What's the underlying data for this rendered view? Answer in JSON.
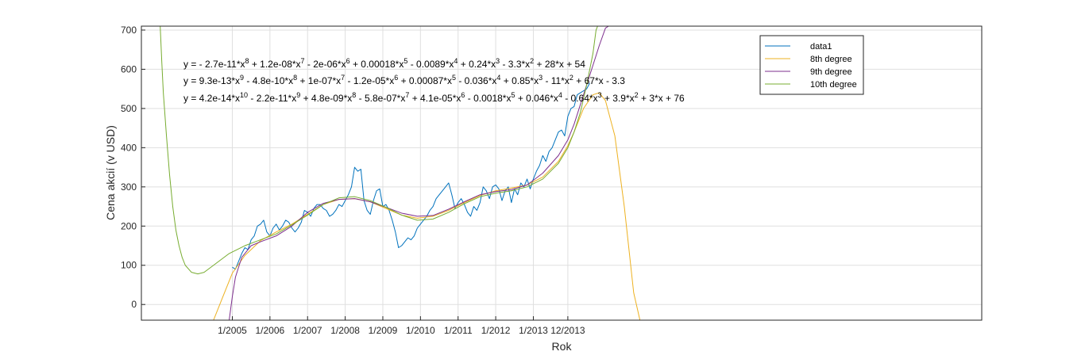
{
  "chart_data": {
    "type": "line",
    "xlabel": "Rok",
    "ylabel": "Cena akcií (v USD)",
    "xlim": [
      -28,
      240
    ],
    "ylim": [
      -40,
      710
    ],
    "ytick_values": [
      0,
      100,
      200,
      300,
      400,
      500,
      600,
      700
    ],
    "ytick_labels": [
      "0",
      "100",
      "200",
      "300",
      "400",
      "500",
      "600",
      "700"
    ],
    "xtick_values": [
      1,
      13,
      25,
      37,
      49,
      61,
      73,
      85,
      97,
      108
    ],
    "xtick_labels": [
      "1/2005",
      "1/2006",
      "1/2007",
      "1/2008",
      "1/2009",
      "1/2010",
      "1/2011",
      "1/2012",
      "1/2013",
      "12/2013"
    ],
    "grid": true,
    "legend": {
      "location": "top-right",
      "entries": [
        {
          "label": "data1",
          "color": "#0072BD"
        },
        {
          "label": "8th degree",
          "color": "#EDB120"
        },
        {
          "label": "9th degree",
          "color": "#7E2F8E"
        },
        {
          "label": "10th degree",
          "color": "#77AC30"
        }
      ]
    },
    "annotations": [
      {
        "label": "y = - 2.7e-11*x^8 + 1.2e-08*x^7 - 2e-06*x^6 + 0.00018*x^5 - 0.0089*x^4 + 0.24*x^3 - 3.3*x^2 + 28*x + 54"
      },
      {
        "label": "y = 9.3e-13*x^9 - 4.8e-10*x^8 + 1e-07*x^7 - 1.2e-05*x^6 + 0.00087*x^5 - 0.036*x^4 + 0.85*x^3 - 11*x^2 + 67*x - 3.3"
      },
      {
        "label": "y = 4.2e-14*x^10 - 2.2e-11*x^9 + 4.8e-09*x^8 - 5.8e-07*x^7 + 4.1e-05*x^6 - 0.0018*x^5 + 0.046*x^4 - 0.64*x^3 + 3.9*x^2 + 3*x + 76"
      }
    ],
    "series": [
      {
        "name": "data1",
        "color": "#0072BD",
        "points": [
          [
            1,
            95
          ],
          [
            2,
            90
          ],
          [
            3,
            110
          ],
          [
            4,
            130
          ],
          [
            5,
            145
          ],
          [
            6,
            140
          ],
          [
            7,
            165
          ],
          [
            8,
            175
          ],
          [
            9,
            200
          ],
          [
            10,
            205
          ],
          [
            11,
            215
          ],
          [
            12,
            185
          ],
          [
            13,
            175
          ],
          [
            14,
            195
          ],
          [
            15,
            205
          ],
          [
            16,
            190
          ],
          [
            17,
            200
          ],
          [
            18,
            215
          ],
          [
            19,
            210
          ],
          [
            20,
            195
          ],
          [
            21,
            185
          ],
          [
            22,
            195
          ],
          [
            23,
            210
          ],
          [
            24,
            240
          ],
          [
            25,
            235
          ],
          [
            26,
            225
          ],
          [
            27,
            245
          ],
          [
            28,
            255
          ],
          [
            29,
            255
          ],
          [
            30,
            245
          ],
          [
            31,
            240
          ],
          [
            32,
            225
          ],
          [
            33,
            230
          ],
          [
            34,
            240
          ],
          [
            35,
            255
          ],
          [
            36,
            250
          ],
          [
            37,
            265
          ],
          [
            38,
            280
          ],
          [
            39,
            300
          ],
          [
            40,
            350
          ],
          [
            41,
            340
          ],
          [
            42,
            345
          ],
          [
            43,
            265
          ],
          [
            44,
            240
          ],
          [
            45,
            230
          ],
          [
            46,
            265
          ],
          [
            47,
            290
          ],
          [
            48,
            295
          ],
          [
            49,
            250
          ],
          [
            50,
            255
          ],
          [
            51,
            240
          ],
          [
            52,
            215
          ],
          [
            53,
            185
          ],
          [
            54,
            145
          ],
          [
            55,
            150
          ],
          [
            56,
            160
          ],
          [
            57,
            170
          ],
          [
            58,
            165
          ],
          [
            59,
            175
          ],
          [
            60,
            195
          ],
          [
            61,
            205
          ],
          [
            62,
            215
          ],
          [
            63,
            225
          ],
          [
            64,
            240
          ],
          [
            65,
            250
          ],
          [
            66,
            270
          ],
          [
            67,
            280
          ],
          [
            68,
            290
          ],
          [
            69,
            300
          ],
          [
            70,
            310
          ],
          [
            71,
            280
          ],
          [
            72,
            245
          ],
          [
            73,
            260
          ],
          [
            74,
            270
          ],
          [
            75,
            255
          ],
          [
            76,
            235
          ],
          [
            77,
            225
          ],
          [
            78,
            250
          ],
          [
            79,
            240
          ],
          [
            80,
            260
          ],
          [
            81,
            300
          ],
          [
            82,
            290
          ],
          [
            83,
            270
          ],
          [
            84,
            300
          ],
          [
            85,
            305
          ],
          [
            86,
            295
          ],
          [
            87,
            265
          ],
          [
            88,
            290
          ],
          [
            89,
            300
          ],
          [
            90,
            260
          ],
          [
            91,
            295
          ],
          [
            92,
            280
          ],
          [
            93,
            310
          ],
          [
            94,
            300
          ],
          [
            95,
            320
          ],
          [
            96,
            295
          ],
          [
            97,
            320
          ],
          [
            98,
            340
          ],
          [
            99,
            355
          ],
          [
            100,
            380
          ],
          [
            101,
            365
          ],
          [
            102,
            390
          ],
          [
            103,
            400
          ],
          [
            104,
            420
          ],
          [
            105,
            440
          ],
          [
            106,
            445
          ],
          [
            107,
            430
          ],
          [
            108,
            480
          ],
          [
            109,
            500
          ],
          [
            110,
            505
          ],
          [
            111,
            535
          ],
          [
            112,
            540
          ],
          [
            113,
            545
          ],
          [
            114,
            550
          ],
          [
            115,
            565
          ]
        ]
      },
      {
        "name": "8th degree",
        "color": "#EDB120",
        "points": [
          [
            -5,
            -40
          ],
          [
            -2,
            20
          ],
          [
            1,
            80
          ],
          [
            5,
            125
          ],
          [
            10,
            163
          ],
          [
            15,
            185
          ],
          [
            20,
            205
          ],
          [
            25,
            230
          ],
          [
            30,
            255
          ],
          [
            35,
            268
          ],
          [
            40,
            270
          ],
          [
            45,
            262
          ],
          [
            50,
            245
          ],
          [
            55,
            228
          ],
          [
            60,
            220
          ],
          [
            65,
            225
          ],
          [
            70,
            240
          ],
          [
            75,
            260
          ],
          [
            80,
            278
          ],
          [
            85,
            290
          ],
          [
            90,
            297
          ],
          [
            95,
            305
          ],
          [
            100,
            325
          ],
          [
            105,
            365
          ],
          [
            108,
            405
          ],
          [
            110,
            440
          ],
          [
            113,
            500
          ],
          [
            116,
            535
          ],
          [
            118,
            540
          ],
          [
            120,
            520
          ],
          [
            123,
            430
          ],
          [
            126,
            250
          ],
          [
            129,
            30
          ],
          [
            131,
            -40
          ]
        ]
      },
      {
        "name": "9th degree",
        "color": "#7E2F8E",
        "points": [
          [
            0,
            -40
          ],
          [
            1,
            20
          ],
          [
            2,
            70
          ],
          [
            4,
            120
          ],
          [
            7,
            150
          ],
          [
            10,
            160
          ],
          [
            15,
            175
          ],
          [
            20,
            200
          ],
          [
            25,
            235
          ],
          [
            30,
            258
          ],
          [
            35,
            268
          ],
          [
            40,
            270
          ],
          [
            45,
            262
          ],
          [
            50,
            248
          ],
          [
            55,
            233
          ],
          [
            60,
            225
          ],
          [
            65,
            227
          ],
          [
            70,
            243
          ],
          [
            75,
            262
          ],
          [
            80,
            280
          ],
          [
            85,
            288
          ],
          [
            90,
            293
          ],
          [
            95,
            305
          ],
          [
            100,
            335
          ],
          [
            105,
            380
          ],
          [
            108,
            420
          ],
          [
            110,
            460
          ],
          [
            112,
            510
          ],
          [
            114,
            560
          ],
          [
            116,
            610
          ],
          [
            118,
            660
          ],
          [
            120,
            705
          ],
          [
            121,
            710
          ]
        ]
      },
      {
        "name": "10th degree",
        "color": "#77AC30",
        "points": [
          [
            -22,
            710
          ],
          [
            -21.5,
            620
          ],
          [
            -21,
            540
          ],
          [
            -20,
            430
          ],
          [
            -19,
            330
          ],
          [
            -18,
            250
          ],
          [
            -17,
            190
          ],
          [
            -16,
            150
          ],
          [
            -15,
            120
          ],
          [
            -14,
            100
          ],
          [
            -12,
            82
          ],
          [
            -10,
            78
          ],
          [
            -8,
            82
          ],
          [
            -5,
            100
          ],
          [
            0,
            130
          ],
          [
            5,
            150
          ],
          [
            10,
            165
          ],
          [
            15,
            180
          ],
          [
            20,
            203
          ],
          [
            25,
            228
          ],
          [
            30,
            255
          ],
          [
            35,
            272
          ],
          [
            40,
            275
          ],
          [
            45,
            265
          ],
          [
            50,
            248
          ],
          [
            55,
            228
          ],
          [
            60,
            215
          ],
          [
            65,
            218
          ],
          [
            70,
            235
          ],
          [
            75,
            257
          ],
          [
            80,
            275
          ],
          [
            85,
            284
          ],
          [
            90,
            290
          ],
          [
            95,
            300
          ],
          [
            100,
            320
          ],
          [
            105,
            360
          ],
          [
            108,
            400
          ],
          [
            110,
            440
          ],
          [
            112,
            490
          ],
          [
            114,
            560
          ],
          [
            116,
            640
          ],
          [
            117,
            700
          ],
          [
            117.5,
            710
          ]
        ]
      }
    ]
  }
}
